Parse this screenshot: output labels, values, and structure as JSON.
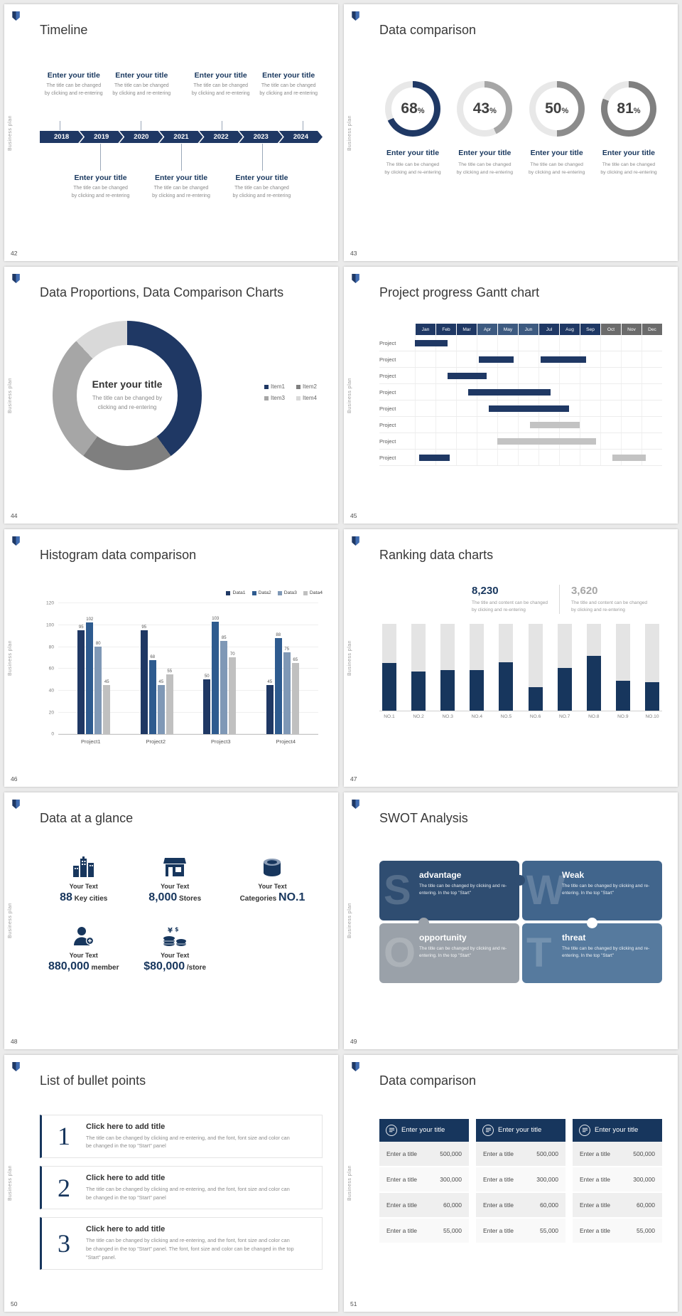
{
  "common": {
    "sidebar_text": "Business plan",
    "enter_title": "Enter your title",
    "caption_l1": "The title can be changed",
    "caption_l2": "by clicking and re-entering"
  },
  "slide42": {
    "number": "42",
    "title": "Timeline",
    "years": [
      "2018",
      "2019",
      "2020",
      "2021",
      "2022",
      "2023",
      "2024"
    ]
  },
  "slide43": {
    "number": "43",
    "title": "Data comparison",
    "rings": [
      {
        "value": "68",
        "percent": 68,
        "color": "#1f3864"
      },
      {
        "value": "43",
        "percent": 43,
        "color": "#a6a6a6"
      },
      {
        "value": "50",
        "percent": 50,
        "color": "#8c8c8c"
      },
      {
        "value": "81",
        "percent": 81,
        "color": "#808080"
      }
    ]
  },
  "slide44": {
    "number": "44",
    "title": "Data Proportions, Data Comparison Charts",
    "center_line1": "The title can be changed by",
    "center_line2": "clicking and re-entering",
    "chart": {
      "type": "pie",
      "segments": [
        {
          "label": "Item1",
          "value": 40,
          "color": "#1f3864"
        },
        {
          "label": "Item2",
          "value": 20,
          "color": "#7f7f7f"
        },
        {
          "label": "Item3",
          "value": 28,
          "color": "#a6a6a6"
        },
        {
          "label": "Item4",
          "value": 12,
          "color": "#d9d9d9"
        }
      ]
    }
  },
  "slide45": {
    "number": "45",
    "title": "Project progress Gantt chart",
    "row_label": "Project",
    "row_count": 8,
    "months": [
      "Jan",
      "Feb",
      "Mar",
      "Apr",
      "May",
      "Jun",
      "Jul",
      "Aug",
      "Sep",
      "Oct",
      "Nov",
      "Dec"
    ],
    "month_colors": [
      "#1f3864",
      "#1f3864",
      "#1f3864",
      "#3d5a80",
      "#3d5a80",
      "#3d5a80",
      "#1f3864",
      "#1f3864",
      "#1f3864",
      "#6b6b6b",
      "#6b6b6b",
      "#6b6b6b"
    ],
    "bar_navy": "#1f3864",
    "bar_gray": "#c3c3c3",
    "bars": [
      {
        "row": 0,
        "start": 0,
        "span": 1.6,
        "color": "navy"
      },
      {
        "row": 1,
        "start": 3.1,
        "span": 1.7,
        "color": "navy"
      },
      {
        "row": 1,
        "start": 6.1,
        "span": 2.2,
        "color": "navy"
      },
      {
        "row": 2,
        "start": 1.6,
        "span": 1.9,
        "color": "navy"
      },
      {
        "row": 3,
        "start": 2.6,
        "span": 4,
        "color": "navy"
      },
      {
        "row": 4,
        "start": 3.6,
        "span": 3.9,
        "color": "navy"
      },
      {
        "row": 5,
        "start": 5.6,
        "span": 2.4,
        "color": "gray"
      },
      {
        "row": 6,
        "start": 4,
        "span": 4.8,
        "color": "gray"
      },
      {
        "row": 7,
        "start": 0.2,
        "span": 1.5,
        "color": "navy"
      },
      {
        "row": 7,
        "start": 9.6,
        "span": 1.6,
        "color": "gray"
      }
    ]
  },
  "slide46": {
    "number": "46",
    "title": "Histogram data comparison",
    "chart": {
      "type": "bar",
      "categories": [
        "Project1",
        "Project2",
        "Project3",
        "Project4"
      ],
      "ymax": 120,
      "yticks": [
        0,
        20,
        40,
        60,
        80,
        100,
        120
      ],
      "series": [
        {
          "name": "Data1",
          "color": "#1f3864",
          "values": [
            95,
            95,
            50,
            45
          ]
        },
        {
          "name": "Data2",
          "color": "#2e5b8f",
          "values": [
            102,
            68,
            103,
            88
          ]
        },
        {
          "name": "Data3",
          "color": "#7f98b6",
          "values": [
            80,
            45,
            85,
            75
          ]
        },
        {
          "name": "Data4",
          "color": "#c0c0c0",
          "values": [
            45,
            55,
            70,
            65
          ]
        }
      ]
    }
  },
  "slide47": {
    "number": "47",
    "title": "Ranking data charts",
    "primary_value": "8,230",
    "secondary_value": "3,620",
    "caption_l1": "The title and content can be changed",
    "caption_l2": "by clicking and re-entering",
    "chart": {
      "type": "bar",
      "categories": [
        "NO.1",
        "NO.2",
        "NO.3",
        "NO.4",
        "NO.5",
        "NO.6",
        "NO.7",
        "NO.8",
        "NO.9",
        "NO.10"
      ],
      "values_pct": [
        55,
        45,
        47,
        47,
        56,
        27,
        49,
        63,
        34,
        33
      ],
      "fill_color": "#17365d",
      "track_color": "#e4e4e4"
    }
  },
  "slide48": {
    "number": "48",
    "title": "Data at a glance",
    "items": [
      {
        "icon": "city",
        "label": "Your Text",
        "big": "88",
        "small": "Key cities"
      },
      {
        "icon": "store",
        "label": "Your Text",
        "big": "8,000",
        "small": "Stores"
      },
      {
        "icon": "box",
        "label": "Your Text",
        "pre": "Categories",
        "big": "NO.1",
        "small": ""
      },
      {
        "icon": "member",
        "label": "Your Text",
        "big": "880,000",
        "small": "member"
      },
      {
        "icon": "money",
        "label": "Your Text",
        "big": "$80,000",
        "small": "/store"
      }
    ]
  },
  "slide49": {
    "number": "49",
    "title": "SWOT Analysis",
    "quads": [
      {
        "letter": "S",
        "title": "advantage",
        "color": "#2f4d71",
        "body": "The title can be changed by clicking and re-entering. In the top \"Start\""
      },
      {
        "letter": "W",
        "title": "Weak",
        "color": "#41658c",
        "body": "The title can be changed by clicking and re-entering. In the top \"Start\""
      },
      {
        "letter": "O",
        "title": "opportunity",
        "color": "#9aa1a9",
        "body": "The title can be changed by clicking and re-entering. In the top \"Start\""
      },
      {
        "letter": "T",
        "title": "threat",
        "color": "#567a9e",
        "body": "The title can be changed by clicking and re-entering. In the top \"Start\""
      }
    ]
  },
  "slide50": {
    "number": "50",
    "title": "List of bullet points",
    "items": [
      {
        "num": "1",
        "title": "Click here to add title",
        "body": "The title can be changed by clicking and re-entering, and the font, font size and color can be changed in the top \"Start\" panel"
      },
      {
        "num": "2",
        "title": "Click here to add title",
        "body": "The title can be changed by clicking and re-entering, and the font, font size and color can be changed in the top \"Start\" panel"
      },
      {
        "num": "3",
        "title": "Click here to add title",
        "body": "The title can be changed by clicking and re-entering, and the font, font size and color can be changed in the top \"Start\" panel. The font, font size and color can be changed in the top \"Start\" panel."
      }
    ]
  },
  "slide51": {
    "number": "51",
    "title": "Data comparison",
    "tables": [
      {
        "header": "Enter your title",
        "rows": [
          [
            "Enter a title",
            "500,000"
          ],
          [
            "Enter a title",
            "300,000"
          ],
          [
            "Enter a title",
            "60,000"
          ],
          [
            "Enter a title",
            "55,000"
          ]
        ]
      },
      {
        "header": "Enter your title",
        "rows": [
          [
            "Enter a title",
            "500,000"
          ],
          [
            "Enter a title",
            "300,000"
          ],
          [
            "Enter a title",
            "60,000"
          ],
          [
            "Enter a title",
            "55,000"
          ]
        ]
      },
      {
        "header": "Enter your title",
        "rows": [
          [
            "Enter a title",
            "500,000"
          ],
          [
            "Enter a title",
            "300,000"
          ],
          [
            "Enter a title",
            "60,000"
          ],
          [
            "Enter a title",
            "55,000"
          ]
        ]
      }
    ]
  }
}
